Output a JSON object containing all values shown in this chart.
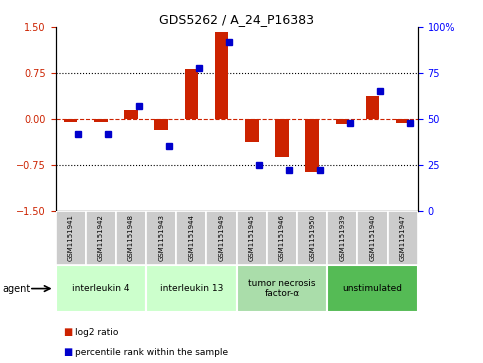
{
  "title": "GDS5262 / A_24_P16383",
  "samples": [
    "GSM1151941",
    "GSM1151942",
    "GSM1151948",
    "GSM1151943",
    "GSM1151944",
    "GSM1151949",
    "GSM1151945",
    "GSM1151946",
    "GSM1151950",
    "GSM1151939",
    "GSM1151940",
    "GSM1151947"
  ],
  "log2_ratio": [
    -0.05,
    -0.05,
    0.15,
    -0.18,
    0.82,
    1.42,
    -0.38,
    -0.62,
    -0.87,
    -0.08,
    0.38,
    -0.07
  ],
  "percentile": [
    42,
    42,
    57,
    35,
    78,
    92,
    25,
    22,
    22,
    48,
    65,
    48
  ],
  "groups": [
    {
      "label": "interleukin 4",
      "start": 0,
      "end": 2,
      "color": "#ccffcc"
    },
    {
      "label": "interleukin 13",
      "start": 3,
      "end": 5,
      "color": "#ccffcc"
    },
    {
      "label": "tumor necrosis\nfactor-α",
      "start": 6,
      "end": 8,
      "color": "#aaddaa"
    },
    {
      "label": "unstimulated",
      "start": 9,
      "end": 11,
      "color": "#55bb55"
    }
  ],
  "ylim": [
    -1.5,
    1.5
  ],
  "yticks_left": [
    -1.5,
    -0.75,
    0.0,
    0.75,
    1.5
  ],
  "yticks_right": [
    0,
    25,
    50,
    75,
    100
  ],
  "hlines_dotted": [
    0.75,
    -0.75
  ],
  "bar_color_red": "#cc2200",
  "bar_color_blue": "#0000cc",
  "bg_color": "#ffffff",
  "legend_red": "log2 ratio",
  "legend_blue": "percentile rank within the sample",
  "agent_label": "agent",
  "sample_box_color": "#cccccc"
}
